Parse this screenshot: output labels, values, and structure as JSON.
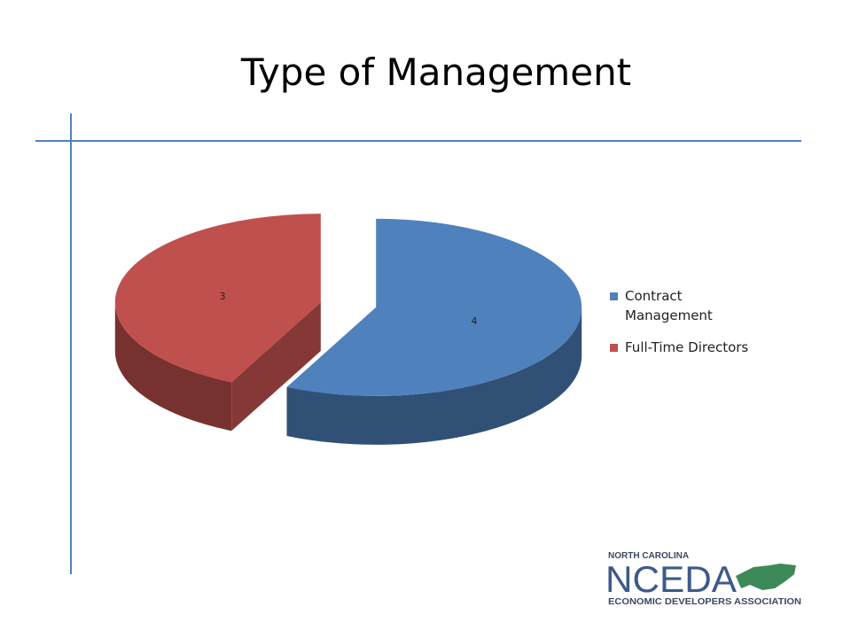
{
  "chart_data": {
    "type": "pie3d",
    "title": "Type of Management",
    "categories": [
      "Contract Management",
      "Full-Time Directors"
    ],
    "values": [
      4,
      3
    ],
    "colors": [
      "#4f81bd",
      "#c0504d"
    ],
    "legend": "right"
  },
  "logo": {
    "top": "NORTH CAROLINA",
    "name": "NCEDA",
    "bottom": "ECONOMIC DEVELOPERS ASSOCIATION"
  }
}
